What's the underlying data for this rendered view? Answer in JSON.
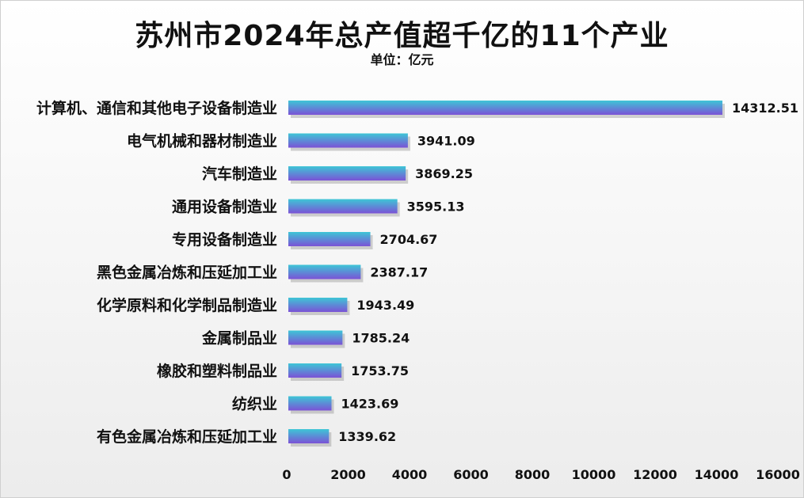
{
  "chart_data": {
    "type": "bar",
    "orientation": "horizontal",
    "title": "苏州市2024年总产值超千亿的11个产业",
    "subtitle": "单位：亿元",
    "categories": [
      "计算机、通信和其他电子设备制造业",
      "电气机械和器材制造业",
      "汽车制造业",
      "通用设备制造业",
      "专用设备制造业",
      "黑色金属冶炼和压延加工业",
      "化学原料和化学制品制造业",
      "金属制品业",
      "橡胶和塑料制品业",
      "纺织业",
      "有色金属冶炼和压延加工业"
    ],
    "values": [
      14312.51,
      3941.09,
      3869.25,
      3595.13,
      2704.67,
      2387.17,
      1943.49,
      1785.24,
      1753.75,
      1423.69,
      1339.62
    ],
    "value_labels": [
      "14312.51",
      "3941.09",
      "3869.25",
      "3595.13",
      "2704.67",
      "2387.17",
      "1943.49",
      "1785.24",
      "1753.75",
      "1423.69",
      "1339.62"
    ],
    "xticks": [
      "0",
      "2000",
      "4000",
      "6000",
      "8000",
      "10000",
      "12000",
      "14000",
      "16000"
    ],
    "xlim": [
      0,
      16000
    ],
    "grid": false,
    "legend": "none",
    "colors": {
      "bar_top": "#3ec6d6",
      "bar_bottom": "#7b52d6",
      "shadow": "#9a9a9a"
    }
  }
}
